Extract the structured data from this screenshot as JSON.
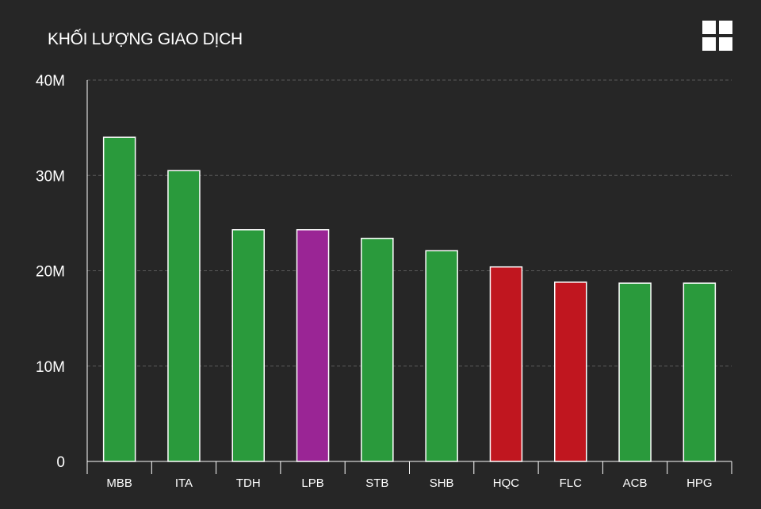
{
  "header": {
    "title": "KHỐI LƯỢNG GIAO DỊCH",
    "menu_icon": "grid-menu-icon"
  },
  "chart_data": {
    "type": "bar",
    "title": "KHỐI LƯỢNG GIAO DỊCH",
    "xlabel": "",
    "ylabel": "",
    "categories": [
      "MBB",
      "ITA",
      "TDH",
      "LPB",
      "STB",
      "SHB",
      "HQC",
      "FLC",
      "ACB",
      "HPG"
    ],
    "values": [
      34.0,
      30.5,
      24.3,
      24.3,
      23.4,
      22.1,
      20.4,
      18.8,
      18.7,
      18.7
    ],
    "colors": [
      "#2a9a3c",
      "#2a9a3c",
      "#2a9a3c",
      "#9a2595",
      "#2a9a3c",
      "#2a9a3c",
      "#c0161f",
      "#c0161f",
      "#2a9a3c",
      "#2a9a3c"
    ],
    "value_unit": "M",
    "ylim": [
      0,
      40
    ],
    "yticks": [
      0,
      10,
      20,
      30,
      40
    ],
    "ytick_labels": [
      "0",
      "10M",
      "20M",
      "30M",
      "40M"
    ],
    "grid": true,
    "legend": "none"
  }
}
